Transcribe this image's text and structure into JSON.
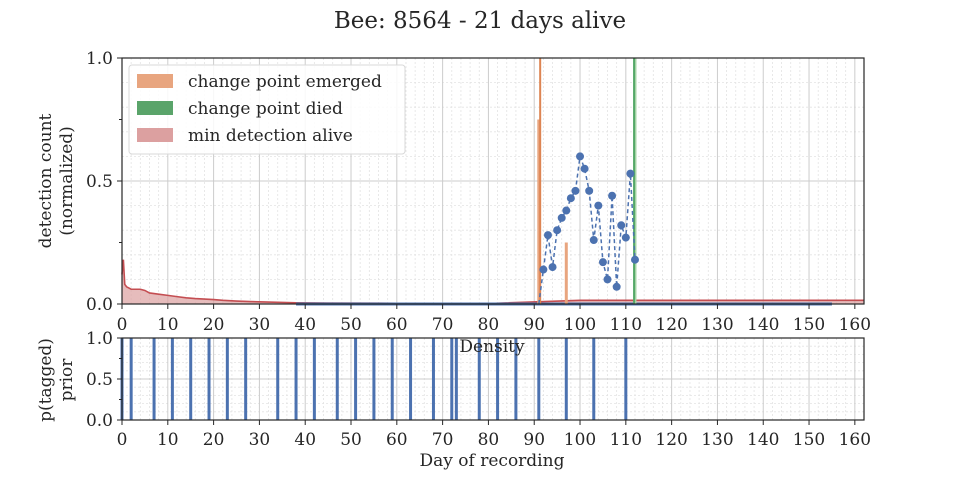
{
  "chart_data": [
    {
      "type": "line",
      "title": "Bee: 8564 - 21 days alive",
      "ylabel": [
        "detection count",
        "(normalized)"
      ],
      "xlabel": "Density",
      "xlim": [
        0,
        162
      ],
      "ylim": [
        0,
        1
      ],
      "xticks": [
        0,
        10,
        20,
        30,
        40,
        50,
        60,
        70,
        80,
        90,
        100,
        110,
        120,
        130,
        140,
        150,
        160
      ],
      "yticks": [
        0.0,
        0.5,
        1.0
      ],
      "ytick_labels": [
        "0.0",
        "0.5",
        "1.0"
      ],
      "grid": true,
      "legend_position": "top-left",
      "legend": [
        {
          "label": "change point emerged",
          "color": "#e8a57f"
        },
        {
          "label": "change point died",
          "color": "#5aa46a"
        },
        {
          "label": "min detection alive",
          "color": "#dca0a0"
        }
      ],
      "series": [
        {
          "kind": "detections",
          "color": "#4c72b0",
          "x": [
            91,
            92,
            93,
            94,
            95,
            96,
            97,
            98,
            99,
            100,
            101,
            102,
            103,
            104,
            105,
            106,
            107,
            108,
            109,
            110,
            111,
            112
          ],
          "y": [
            0.0,
            0.14,
            0.28,
            0.15,
            0.3,
            0.35,
            0.38,
            0.43,
            0.46,
            0.6,
            0.55,
            0.46,
            0.26,
            0.4,
            0.17,
            0.1,
            0.44,
            0.07,
            0.32,
            0.27,
            0.53,
            0.18
          ]
        },
        {
          "kind": "zero_detections",
          "color": "#4c72b0",
          "x_start": 38,
          "x_end": 155,
          "y": 0.0
        },
        {
          "kind": "change_point_emerged",
          "color": "#dd8452",
          "line_x": 91.3,
          "bars": [
            {
              "x": 91,
              "height": 0.75
            },
            {
              "x": 97,
              "height": 0.25
            }
          ]
        },
        {
          "kind": "change_point_died",
          "color": "#55a868",
          "line_x": 111.8,
          "bars": [
            {
              "x": 112,
              "height": 1.0
            }
          ]
        },
        {
          "kind": "min_detection_density",
          "color": "#c44e52",
          "x": [
            0,
            0.3,
            0.6,
            1,
            2,
            3,
            4,
            5,
            6,
            8,
            10,
            12,
            14,
            16,
            18,
            20,
            22,
            25,
            28,
            32,
            36,
            38,
            45,
            60,
            80,
            100,
            162
          ],
          "y": [
            0.12,
            0.18,
            0.08,
            0.07,
            0.06,
            0.06,
            0.06,
            0.055,
            0.045,
            0.04,
            0.035,
            0.03,
            0.025,
            0.022,
            0.02,
            0.018,
            0.015,
            0.012,
            0.01,
            0.008,
            0.006,
            0.005,
            0.004,
            0.003,
            0.002,
            0.015,
            0.015
          ]
        }
      ]
    },
    {
      "type": "bar",
      "ylabel": [
        "p(tagged)",
        "prior"
      ],
      "xlabel": "Day of recording",
      "xlim": [
        0,
        162
      ],
      "ylim": [
        0,
        1
      ],
      "xticks": [
        0,
        10,
        20,
        30,
        40,
        50,
        60,
        70,
        80,
        90,
        100,
        110,
        120,
        130,
        140,
        150,
        160
      ],
      "yticks": [
        0.0,
        0.5,
        1.0
      ],
      "ytick_labels": [
        "0.0",
        "0.5",
        "1.0"
      ],
      "grid": true,
      "bar_color": "#4c72b0",
      "x": [
        0,
        2,
        7,
        11,
        15,
        19,
        23,
        27,
        34,
        38,
        42,
        47,
        51,
        55,
        59,
        63,
        68,
        72,
        73,
        78,
        82,
        86,
        91,
        97,
        103,
        110
      ],
      "values": [
        1,
        1,
        1,
        1,
        1,
        1,
        1,
        1,
        1,
        1,
        1,
        1,
        1,
        1,
        1,
        1,
        1,
        1,
        1,
        1,
        1,
        1,
        1,
        1,
        1,
        1
      ]
    }
  ]
}
